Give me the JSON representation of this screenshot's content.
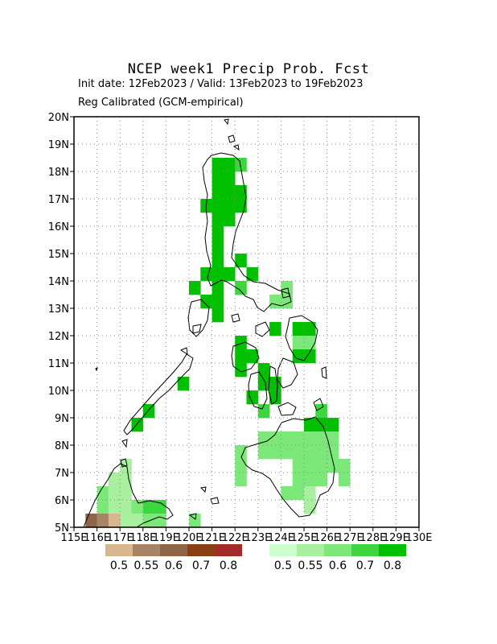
{
  "title": "NCEP week1 Precip Prob. Fcst",
  "subtitle_line1": "Init date: 12Feb2023 / Valid: 13Feb2023 to 19Feb2023",
  "subtitle_line2": "Reg Calibrated (GCM-empirical)",
  "map": {
    "lon_range": [
      115,
      130
    ],
    "lat_range": [
      5,
      20
    ],
    "lon_tick_labels": [
      "115E",
      "116E",
      "117E",
      "118E",
      "119E",
      "120E",
      "121E",
      "122E",
      "123E",
      "124E",
      "125E",
      "126E",
      "127E",
      "128E",
      "129E",
      "130E"
    ],
    "lat_tick_labels": [
      "5N",
      "6N",
      "7N",
      "8N",
      "9N",
      "10N",
      "11N",
      "12N",
      "13N",
      "14N",
      "15N",
      "16N",
      "17N",
      "18N",
      "19N",
      "20N"
    ],
    "grid": "dotted",
    "cell_size_deg": 0.5
  },
  "legend": {
    "dry": {
      "colors": [
        "#d8b78e",
        "#a88466",
        "#8e6547",
        "#8a3f15",
        "#a52a2a"
      ],
      "labels": [
        "0.5",
        "0.55",
        "0.6",
        "0.7",
        "0.8"
      ]
    },
    "wet": {
      "colors": [
        "#ccffcc",
        "#a8f0a0",
        "#7de87a",
        "#3ed63e",
        "#00c000"
      ],
      "labels": [
        "0.5",
        "0.55",
        "0.6",
        "0.7",
        "0.8"
      ]
    }
  },
  "chart_data": {
    "type": "heatmap",
    "title": "NCEP week1 Precip Prob. Fcst",
    "x_units": "degrees East longitude",
    "y_units": "degrees North latitude",
    "note_values": "each cell: [lon, lat, probability category index] where wet index 0-4 = 0.5,0.55,0.6,0.7,0.8; dry index uses category key d",
    "wet_cells": [
      [
        121,
        18,
        4
      ],
      [
        121.5,
        18,
        4
      ],
      [
        122,
        18,
        3
      ],
      [
        121,
        17.5,
        4
      ],
      [
        121.5,
        17.5,
        4
      ],
      [
        121,
        17,
        4
      ],
      [
        121.5,
        17,
        4
      ],
      [
        122,
        17,
        4
      ],
      [
        120.5,
        16.5,
        4
      ],
      [
        121,
        16.5,
        4
      ],
      [
        121.5,
        16.5,
        4
      ],
      [
        122,
        16.5,
        4
      ],
      [
        121,
        16,
        4
      ],
      [
        121.5,
        16,
        4
      ],
      [
        121,
        15.5,
        4
      ],
      [
        121,
        15,
        4
      ],
      [
        121,
        14.5,
        4
      ],
      [
        122,
        14.5,
        4
      ],
      [
        120.5,
        14,
        4
      ],
      [
        121,
        14,
        4
      ],
      [
        121.5,
        14,
        4
      ],
      [
        122.5,
        14,
        4
      ],
      [
        120,
        13.5,
        4
      ],
      [
        121,
        13.5,
        4
      ],
      [
        122,
        13.5,
        3
      ],
      [
        124,
        13.5,
        2
      ],
      [
        120.5,
        13,
        4
      ],
      [
        121,
        13,
        4
      ],
      [
        123.5,
        13,
        2
      ],
      [
        124,
        13,
        2
      ],
      [
        121,
        12.5,
        4
      ],
      [
        123.5,
        12,
        4
      ],
      [
        124.5,
        12,
        4
      ],
      [
        125,
        12,
        4
      ],
      [
        122,
        11.5,
        4
      ],
      [
        124.5,
        11.5,
        2
      ],
      [
        125,
        11.5,
        2
      ],
      [
        122,
        11,
        4
      ],
      [
        122.5,
        11,
        4
      ],
      [
        124.5,
        11,
        4
      ],
      [
        125,
        11,
        4
      ],
      [
        122,
        10.5,
        4
      ],
      [
        123,
        10.5,
        4
      ],
      [
        119.5,
        10,
        4
      ],
      [
        123,
        10,
        4
      ],
      [
        123.5,
        10,
        4
      ],
      [
        122.5,
        9.5,
        4
      ],
      [
        123.5,
        9.5,
        4
      ],
      [
        118,
        9,
        4
      ],
      [
        123,
        9,
        3
      ],
      [
        125.5,
        9,
        3
      ],
      [
        117.5,
        8.5,
        4
      ],
      [
        125,
        8.5,
        4
      ],
      [
        125.5,
        8.5,
        4
      ],
      [
        126,
        8.5,
        4
      ],
      [
        123,
        8,
        2
      ],
      [
        123.5,
        8,
        2
      ],
      [
        124,
        8,
        2
      ],
      [
        124.5,
        8,
        2
      ],
      [
        125,
        8,
        2
      ],
      [
        125.5,
        8,
        2
      ],
      [
        126,
        8,
        2
      ],
      [
        122,
        7.5,
        2
      ],
      [
        123,
        7.5,
        2
      ],
      [
        123.5,
        7.5,
        2
      ],
      [
        124,
        7.5,
        2
      ],
      [
        124.5,
        7.5,
        2
      ],
      [
        125,
        7.5,
        2
      ],
      [
        125.5,
        7.5,
        2
      ],
      [
        126,
        7.5,
        2
      ],
      [
        122,
        7,
        2
      ],
      [
        124.5,
        7,
        2
      ],
      [
        125,
        7,
        2
      ],
      [
        125.5,
        7,
        2
      ],
      [
        126,
        7,
        2
      ],
      [
        126.5,
        7,
        2
      ],
      [
        117,
        7,
        1
      ],
      [
        122,
        6.5,
        2
      ],
      [
        124.5,
        6.5,
        2
      ],
      [
        125,
        6.5,
        2
      ],
      [
        125.5,
        6.5,
        2
      ],
      [
        126.5,
        6.5,
        2
      ],
      [
        116.5,
        6.5,
        1
      ],
      [
        117,
        6.5,
        1
      ],
      [
        124,
        6,
        2
      ],
      [
        124.5,
        6,
        2
      ],
      [
        125,
        6,
        1
      ],
      [
        116,
        6,
        2
      ],
      [
        116.5,
        6,
        1
      ],
      [
        117,
        6,
        1
      ],
      [
        118,
        5.5,
        3
      ],
      [
        118.5,
        5.5,
        3
      ],
      [
        116,
        5.5,
        2
      ],
      [
        116.5,
        5.5,
        1
      ],
      [
        117,
        5.5,
        1
      ],
      [
        117.5,
        5.5,
        2
      ],
      [
        125,
        5.5,
        1
      ],
      [
        117,
        5,
        1
      ],
      [
        117.5,
        5,
        1
      ],
      [
        118,
        5,
        2
      ],
      [
        118.5,
        5,
        2
      ],
      [
        120,
        5,
        2
      ]
    ],
    "dry_cells": [
      [
        115.5,
        5,
        2
      ],
      [
        116,
        5,
        1
      ],
      [
        116.5,
        5,
        0
      ]
    ]
  }
}
